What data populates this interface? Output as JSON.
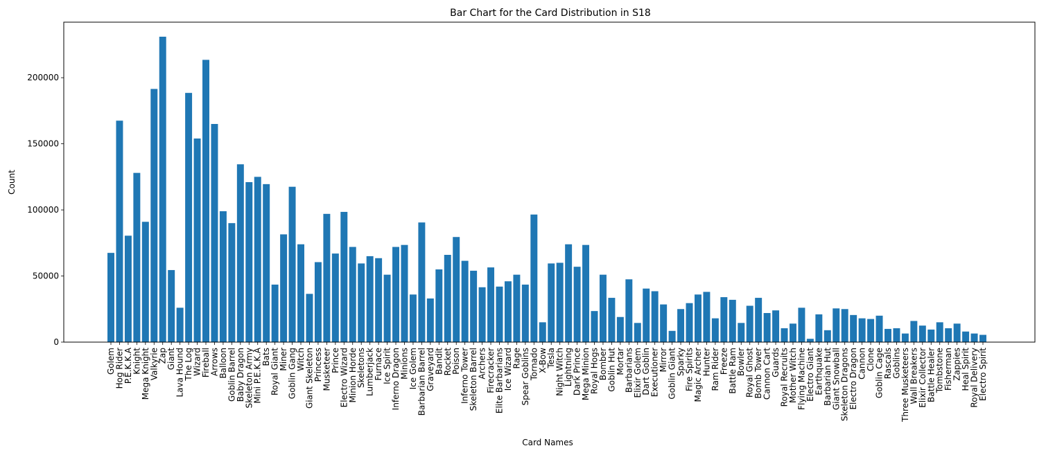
{
  "chart_data": {
    "type": "bar",
    "title": "Bar Chart for the Card Distribution in S18",
    "xlabel": "Card Names",
    "ylabel": "Count",
    "ylim": [
      0,
      242000
    ],
    "yticks": [
      0,
      50000,
      100000,
      150000,
      200000
    ],
    "grid": false,
    "bar_color": "#1f77b4",
    "categories": [
      "Golem",
      "Hog Rider",
      "P.E.K.K.A",
      "Knight",
      "Mega Knight",
      "Valkyrie",
      "Zap",
      "Giant",
      "Lava Hound",
      "The Log",
      "Wizard",
      "Fireball",
      "Arrows",
      "Balloon",
      "Goblin Barrel",
      "Baby Dragon",
      "Skeleton Army",
      "Mini P.E.K.K.A",
      "Bats",
      "Royal Giant",
      "Miner",
      "Goblin Gang",
      "Witch",
      "Giant Skeleton",
      "Princess",
      "Musketeer",
      "Prince",
      "Electro Wizard",
      "Minion Horde",
      "Skeletons",
      "Lumberjack",
      "Furnace",
      "Ice Spirit",
      "Inferno Dragon",
      "Minions",
      "Ice Golem",
      "Barbarian Barrel",
      "Graveyard",
      "Bandit",
      "Rocket",
      "Poison",
      "Inferno Tower",
      "Skeleton Barrel",
      "Archers",
      "Firecracker",
      "Elite Barbarians",
      "Ice Wizard",
      "Rage",
      "Spear Goblins",
      "Tornado",
      "X-Bow",
      "Tesla",
      "Night Witch",
      "Lightning",
      "Dark Prince",
      "Mega Minion",
      "Royal Hogs",
      "Bomber",
      "Goblin Hut",
      "Mortar",
      "Barbarians",
      "Elixir Golem",
      "Dart Goblin",
      "Executioner",
      "Mirror",
      "Goblin Giant",
      "Sparky",
      "Fire Spirits",
      "Magic Archer",
      "Hunter",
      "Ram Rider",
      "Freeze",
      "Battle Ram",
      "Bowler",
      "Royal Ghost",
      "Bomb Tower",
      "Cannon Cart",
      "Guards",
      "Royal Recruits",
      "Mother Witch",
      "Flying Machine",
      "Electro Giant",
      "Earthquake",
      "Barbarian Hut",
      "Giant Snowball",
      "Skeleton Dragons",
      "Electro Dragon",
      "Cannon",
      "Clone",
      "Goblin Cage",
      "Rascals",
      "Goblins",
      "Three Musketeers",
      "Wall Breakers",
      "Elixir Collector",
      "Battle Healer",
      "Tombstone",
      "Fisherman",
      "Zappies",
      "Heal Spirit",
      "Royal Delivery",
      "Electro Spirit"
    ],
    "values": [
      67500,
      167500,
      80500,
      128000,
      91000,
      191500,
      231000,
      54500,
      26000,
      188500,
      154000,
      213500,
      165000,
      99000,
      90000,
      134500,
      121000,
      125000,
      119500,
      43500,
      81500,
      117500,
      74000,
      36500,
      60500,
      97000,
      67000,
      98500,
      72000,
      59500,
      65000,
      63500,
      51000,
      72000,
      73500,
      36000,
      90500,
      33000,
      55000,
      66000,
      79500,
      61500,
      54000,
      41500,
      56500,
      42000,
      46000,
      51000,
      43500,
      96500,
      15000,
      59500,
      60000,
      74000,
      57000,
      73500,
      23500,
      51000,
      33500,
      19000,
      47500,
      14500,
      40500,
      38500,
      28500,
      8500,
      25000,
      29500,
      36000,
      38000,
      18000,
      34000,
      32000,
      14500,
      27500,
      33500,
      22000,
      24000,
      10500,
      14000,
      26000,
      2500,
      21000,
      9000,
      25500,
      25000,
      20500,
      18000,
      17500,
      20000,
      10000,
      10500,
      6500,
      16000,
      12500,
      9500,
      15000,
      10500,
      14000,
      8000,
      6500,
      5500
    ]
  }
}
